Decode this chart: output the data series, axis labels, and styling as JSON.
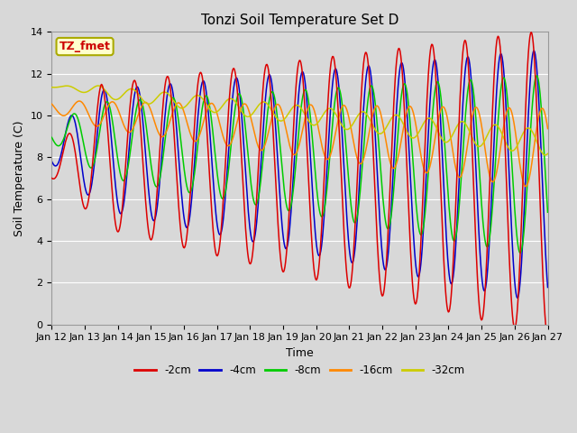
{
  "title": "Tonzi Soil Temperature Set D",
  "xlabel": "Time",
  "ylabel": "Soil Temperature (C)",
  "ylim": [
    0,
    14
  ],
  "x_tick_labels": [
    "Jan 12",
    "Jan 13",
    "Jan 14",
    "Jan 15",
    "Jan 16",
    "Jan 17",
    "Jan 18",
    "Jan 19",
    "Jan 20",
    "Jan 21",
    "Jan 22",
    "Jan 23",
    "Jan 24",
    "Jan 25",
    "Jan 26",
    "Jan 27"
  ],
  "annotation_text": "TZ_fmet",
  "annotation_color": "#cc0000",
  "annotation_bg": "#ffffcc",
  "annotation_border": "#aaaa00",
  "colors": {
    "-2cm": "#dd0000",
    "-4cm": "#0000cc",
    "-8cm": "#00cc00",
    "-16cm": "#ff8800",
    "-32cm": "#cccc00"
  },
  "plot_bg": "#d8d8d8",
  "fig_bg": "#d8d8d8",
  "grid_color": "#ffffff",
  "title_fontsize": 11,
  "label_fontsize": 9,
  "tick_fontsize": 8
}
